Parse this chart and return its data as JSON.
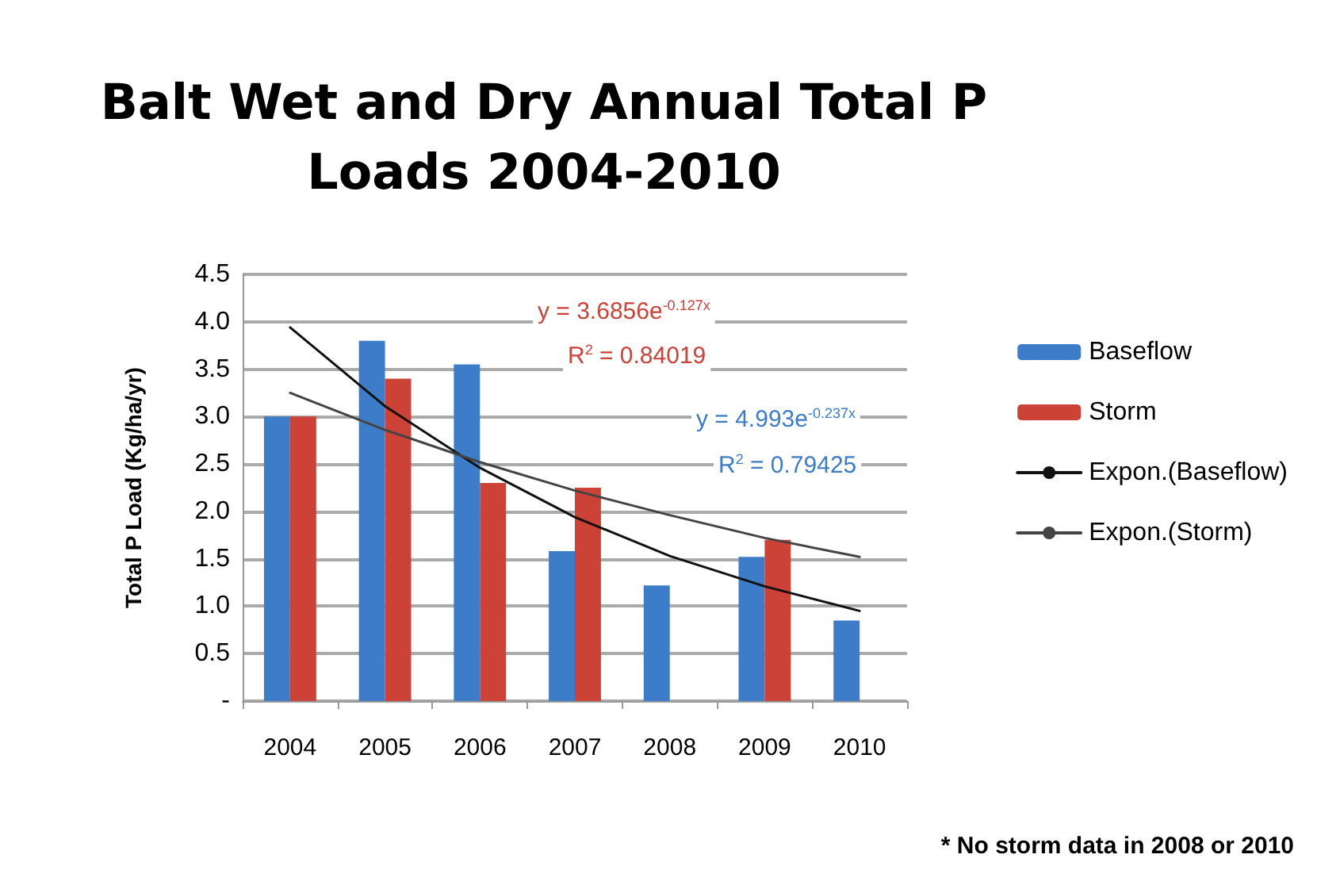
{
  "chart_data": {
    "type": "bar",
    "title": "Balt Wet and Dry Annual Total P\nLoads 2004-2010",
    "ylabel": "Total P Load (Kg/ha/yr)",
    "categories": [
      "2004",
      "2005",
      "2006",
      "2007",
      "2008",
      "2009",
      "2010"
    ],
    "series": [
      {
        "name": "Baseflow",
        "color": "#3d7cc9",
        "values": [
          3.0,
          3.8,
          3.55,
          1.58,
          1.22,
          1.52,
          0.85
        ]
      },
      {
        "name": "Storm",
        "color": "#cc4236",
        "values": [
          3.0,
          3.4,
          2.3,
          2.25,
          null,
          1.7,
          null
        ]
      },
      {
        "name": "Expon.(Baseflow)",
        "type": "line",
        "color": "#111111",
        "values": [
          3.94,
          3.11,
          2.46,
          1.94,
          1.53,
          1.21,
          0.95
        ]
      },
      {
        "name": "Expon.(Storm)",
        "type": "line",
        "color": "#444444",
        "values": [
          3.25,
          2.86,
          2.52,
          2.22,
          1.96,
          1.72,
          1.52
        ]
      }
    ],
    "ylim": [
      0,
      4.5
    ],
    "yticks": [
      {
        "value": 0,
        "label": "-"
      },
      {
        "value": 0.5,
        "label": "0.5"
      },
      {
        "value": 1,
        "label": "1.0"
      },
      {
        "value": 1.5,
        "label": "1.5"
      },
      {
        "value": 2,
        "label": "2.0"
      },
      {
        "value": 2.5,
        "label": "2.5"
      },
      {
        "value": 3,
        "label": "3.0"
      },
      {
        "value": 3.5,
        "label": "3.5"
      },
      {
        "value": 4,
        "label": "4.0"
      },
      {
        "value": 4.5,
        "label": "4.5"
      }
    ],
    "grid": "y",
    "legend": "right",
    "marker": "none",
    "line_style": "solid",
    "annotations": [
      "y = 3.6856e$^{-0.127x}$",
      "R$^{2}$ = 0.84019",
      "y = 4.993e$^{-0.237x}$",
      "R$^{2}$ = 0.79425",
      "* No storm data in 2008 or 2010"
    ]
  }
}
